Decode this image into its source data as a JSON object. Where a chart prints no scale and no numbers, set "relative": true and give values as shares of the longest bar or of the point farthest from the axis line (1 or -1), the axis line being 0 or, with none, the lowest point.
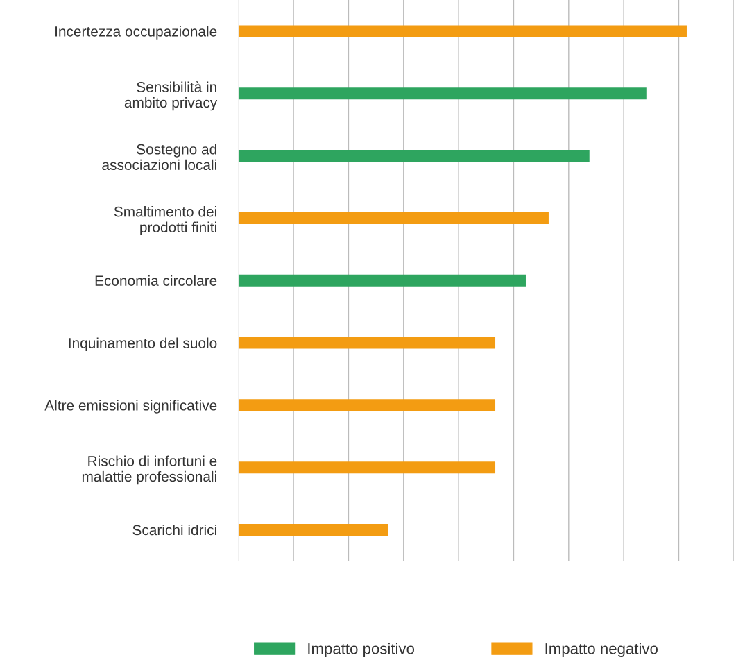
{
  "chart_data": {
    "type": "bar",
    "orientation": "horizontal",
    "relative": true,
    "grid": "x",
    "legend": "bottom",
    "tick_labels": "y",
    "categories": [
      "Incertezza occupazionale",
      "Sensibilità in\nambito privacy",
      "Sostegno ad\nassociazioni locali",
      "Smaltimento dei\nprodotti finiti",
      "Economia circolare",
      "Inquinamento del suolo",
      "Altre emissioni significative",
      "Rischio di infortuni e\nmalattie professionali",
      "Scarichi idrici"
    ],
    "series": [
      {
        "name": "Impatto positivo",
        "color": "#2ea55f",
        "values": [
          null,
          0.91,
          0.783,
          null,
          0.641,
          null,
          null,
          null,
          null
        ]
      },
      {
        "name": "Impatto negativo",
        "color": "#f39c12",
        "values": [
          1,
          null,
          null,
          0.692,
          null,
          0.573,
          0.573,
          0.573,
          0.334
        ]
      }
    ]
  }
}
